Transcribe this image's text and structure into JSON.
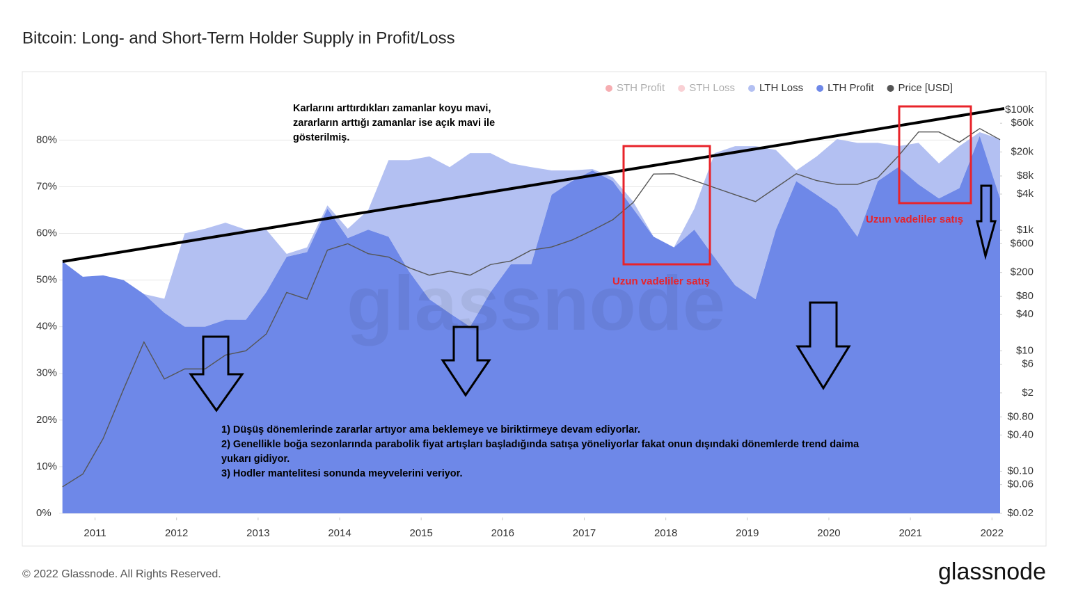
{
  "chart_data": {
    "type": "area",
    "title": "Bitcoin: Long- and Short-Term Holder Supply in Profit/Loss",
    "watermark": "glassnode",
    "footer": "© 2022 Glassnode. All Rights Reserved.",
    "brand": "glassnode",
    "stacked": true,
    "grid": true,
    "legend": "top-right",
    "hidden_series": [
      {
        "name": "STH Profit",
        "color": "#e8333c"
      },
      {
        "name": "STH Loss",
        "color": "#f08a93"
      }
    ],
    "x": [
      2010.6,
      2010.85,
      2011.1,
      2011.35,
      2011.6,
      2011.85,
      2012.1,
      2012.35,
      2012.6,
      2012.85,
      2013.1,
      2013.35,
      2013.6,
      2013.85,
      2014.1,
      2014.35,
      2014.6,
      2014.85,
      2015.1,
      2015.35,
      2015.6,
      2015.85,
      2016.1,
      2016.35,
      2016.6,
      2016.85,
      2017.1,
      2017.35,
      2017.6,
      2017.85,
      2018.1,
      2018.35,
      2018.6,
      2018.85,
      2019.1,
      2019.35,
      2019.6,
      2019.85,
      2020.1,
      2020.35,
      2020.6,
      2020.85,
      2021.1,
      2021.35,
      2021.6,
      2021.85,
      2022.1
    ],
    "series": [
      {
        "name": "LTH Loss",
        "color": "#b3c0f2",
        "values": [
          0,
          0,
          0,
          0,
          0,
          3,
          20,
          21,
          20.8,
          19.3,
          13.4,
          0.6,
          1,
          0.7,
          2,
          4.2,
          16.4,
          23.8,
          30.6,
          31.3,
          37.2,
          29.8,
          21.6,
          20.8,
          5.2,
          2.3,
          0.3,
          0.8,
          1.5,
          0,
          0,
          4.5,
          22.4,
          29.8,
          32.8,
          17.1,
          2.3,
          8.2,
          14.9,
          20.1,
          8.2,
          4.5,
          8.9,
          7.5,
          9,
          0.8,
          12.7
        ]
      },
      {
        "name": "LTH Profit",
        "color": "#6e88e8",
        "values": [
          54,
          50.7,
          51,
          50,
          47,
          43,
          40,
          40,
          41.5,
          41.5,
          47.4,
          55,
          56,
          65.3,
          59,
          60.8,
          59.3,
          51.9,
          45.9,
          42.9,
          40,
          47.4,
          53.4,
          53.4,
          68.3,
          71.2,
          73.5,
          71.2,
          65.3,
          59.3,
          57,
          60.8,
          54.8,
          48.9,
          45.9,
          60.8,
          71.2,
          68.3,
          65.3,
          59.3,
          71.2,
          74.2,
          70.5,
          67.5,
          69.7,
          80.9,
          67.5
        ]
      },
      {
        "name": "Price [USD]",
        "color": "#555555",
        "axis": "y2",
        "values": [
          0.055,
          0.09,
          0.35,
          2.3,
          14,
          3.4,
          5,
          5,
          8.5,
          10,
          19,
          93,
          72,
          470,
          600,
          410,
          360,
          240,
          180,
          210,
          180,
          270,
          310,
          470,
          530,
          690,
          1000,
          1500,
          2900,
          8600,
          8700,
          6700,
          5100,
          3900,
          3000,
          5100,
          8700,
          6700,
          5800,
          5800,
          7500,
          17000,
          43000,
          43000,
          29000,
          49000,
          32000
        ]
      }
    ],
    "xlim": [
      2010.56,
      2022.1
    ],
    "xticks": [
      2011,
      2012,
      2013,
      2014,
      2015,
      2016,
      2017,
      2018,
      2019,
      2020,
      2021,
      2022
    ],
    "ylim": [
      0,
      89
    ],
    "yticks": [
      {
        "value": 0,
        "label": "0%"
      },
      {
        "value": 10,
        "label": "10%"
      },
      {
        "value": 20,
        "label": "20%"
      },
      {
        "value": 30,
        "label": "30%"
      },
      {
        "value": 40,
        "label": "40%"
      },
      {
        "value": 50,
        "label": "50%"
      },
      {
        "value": 60,
        "label": "60%"
      },
      {
        "value": 70,
        "label": "70%"
      },
      {
        "value": 80,
        "label": "80%"
      }
    ],
    "y2_log": true,
    "y2lim": [
      0.02,
      157000
    ],
    "y2ticks": [
      {
        "value": 0.02,
        "label": "$0.02"
      },
      {
        "value": 0.06,
        "label": "$0.06"
      },
      {
        "value": 0.1,
        "label": "$0.10"
      },
      {
        "value": 0.4,
        "label": "$0.40"
      },
      {
        "value": 0.8,
        "label": "$0.80"
      },
      {
        "value": 2,
        "label": "$2"
      },
      {
        "value": 6,
        "label": "$6"
      },
      {
        "value": 10,
        "label": "$10"
      },
      {
        "value": 40,
        "label": "$40"
      },
      {
        "value": 80,
        "label": "$80"
      },
      {
        "value": 200,
        "label": "$200"
      },
      {
        "value": 600,
        "label": "$600"
      },
      {
        "value": 1000,
        "label": "$1k"
      },
      {
        "value": 4000,
        "label": "$4k"
      },
      {
        "value": 8000,
        "label": "$8k"
      },
      {
        "value": 20000,
        "label": "$20k"
      },
      {
        "value": 60000,
        "label": "$60k"
      },
      {
        "value": 100000,
        "label": "$100k"
      }
    ],
    "annotations": {
      "note": [
        "Karlarını arttırdıkları zamanlar koyu mavi,",
        "zararların arttığı zamanlar ise açık mavi ile",
        "gösterilmiş."
      ],
      "sell_label": "Uzun vadeliler satış",
      "points": [
        "1) Düşüş dönemlerinde zararlar artıyor ama beklemeye ve biriktirmeye devam ediyorlar.",
        "2) Genellikle boğa sezonlarında parabolik fiyat artışları başladığında satışa yöneliyorlar fakat  onun dışındaki dönemlerde trend daima",
        "yukarı gidiyor.",
        "3) Hodler mantelitesi sonunda meyvelerini veriyor."
      ]
    }
  }
}
